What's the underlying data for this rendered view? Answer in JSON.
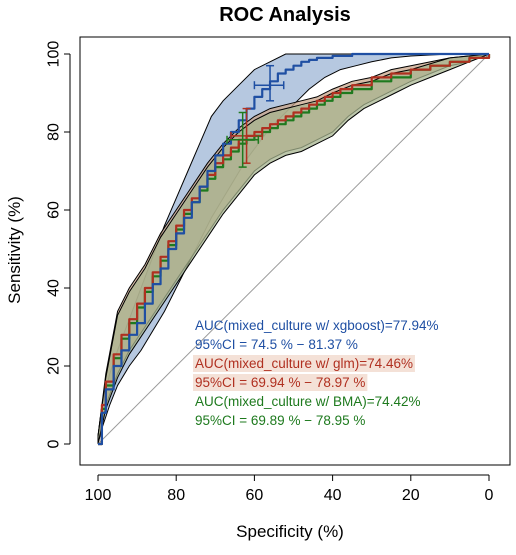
{
  "chart_data": {
    "type": "line",
    "title": "ROC Analysis",
    "xlabel": "Specificity (%)",
    "ylabel": "Sensitivity (%)",
    "xlim": [
      100,
      0
    ],
    "ylim": [
      0,
      100
    ],
    "x_reversed": true,
    "xticks": [
      100,
      80,
      60,
      40,
      20,
      0
    ],
    "yticks": [
      0,
      20,
      40,
      60,
      80,
      100
    ],
    "grid": false,
    "diagonal_reference": true,
    "series": [
      {
        "name": "xgboost",
        "color": "#1f4fa3",
        "band_color": "#9db6d6",
        "points": [
          [
            100,
            0
          ],
          [
            99,
            8
          ],
          [
            98,
            14
          ],
          [
            96,
            20
          ],
          [
            94,
            24
          ],
          [
            92,
            28
          ],
          [
            90,
            31
          ],
          [
            88,
            36
          ],
          [
            86,
            41
          ],
          [
            84,
            45
          ],
          [
            82,
            50
          ],
          [
            80,
            54
          ],
          [
            78,
            58
          ],
          [
            76,
            62
          ],
          [
            74,
            66
          ],
          [
            72,
            70
          ],
          [
            70,
            74
          ],
          [
            68,
            77
          ],
          [
            66,
            80
          ],
          [
            64,
            83
          ],
          [
            62,
            86
          ],
          [
            60,
            89
          ],
          [
            58,
            91
          ],
          [
            56,
            93
          ],
          [
            54,
            95
          ],
          [
            52,
            96
          ],
          [
            50,
            97
          ],
          [
            48,
            98
          ],
          [
            46,
            98.5
          ],
          [
            44,
            99
          ],
          [
            40,
            99.5
          ],
          [
            35,
            100
          ],
          [
            20,
            100
          ],
          [
            0,
            100
          ]
        ],
        "upper": [
          [
            100,
            2
          ],
          [
            99,
            10
          ],
          [
            97,
            18
          ],
          [
            95,
            24
          ],
          [
            92,
            32
          ],
          [
            89,
            40
          ],
          [
            86,
            48
          ],
          [
            83,
            56
          ],
          [
            80,
            63
          ],
          [
            77,
            70
          ],
          [
            74,
            77
          ],
          [
            71,
            84
          ],
          [
            68,
            88
          ],
          [
            64,
            92
          ],
          [
            60,
            96
          ],
          [
            56,
            98
          ],
          [
            52,
            100
          ],
          [
            50,
            100
          ],
          [
            0,
            100
          ]
        ],
        "lower": [
          [
            100,
            0
          ],
          [
            99,
            4
          ],
          [
            97,
            10
          ],
          [
            95,
            15
          ],
          [
            92,
            20
          ],
          [
            89,
            24
          ],
          [
            86,
            29
          ],
          [
            83,
            34
          ],
          [
            80,
            40
          ],
          [
            77,
            46
          ],
          [
            74,
            52
          ],
          [
            71,
            58
          ],
          [
            68,
            63
          ],
          [
            65,
            68
          ],
          [
            62,
            73
          ],
          [
            59,
            77
          ],
          [
            56,
            81
          ],
          [
            53,
            84
          ],
          [
            50,
            87
          ],
          [
            46,
            91
          ],
          [
            42,
            94
          ],
          [
            38,
            96
          ],
          [
            34,
            97
          ],
          [
            30,
            98
          ],
          [
            25,
            99
          ],
          [
            20,
            99.5
          ],
          [
            10,
            100
          ],
          [
            0,
            100
          ]
        ],
        "ci_point": {
          "x": 56,
          "y": 92,
          "x_err": [
            52.5,
            60
          ],
          "y_err": [
            88,
            97
          ]
        }
      },
      {
        "name": "glm",
        "color": "#b03020",
        "band_color": "#c9a58a",
        "points": [
          [
            100,
            0
          ],
          [
            99,
            10
          ],
          [
            98,
            16
          ],
          [
            96,
            23
          ],
          [
            94,
            28
          ],
          [
            92,
            32
          ],
          [
            90,
            36
          ],
          [
            88,
            40
          ],
          [
            86,
            44
          ],
          [
            84,
            48
          ],
          [
            82,
            52
          ],
          [
            80,
            56
          ],
          [
            78,
            60
          ],
          [
            76,
            63
          ],
          [
            74,
            66
          ],
          [
            72,
            69
          ],
          [
            70,
            72
          ],
          [
            68,
            74
          ],
          [
            66,
            76
          ],
          [
            64,
            78
          ],
          [
            62,
            79
          ],
          [
            60,
            80
          ],
          [
            58,
            81
          ],
          [
            56,
            82
          ],
          [
            54,
            83
          ],
          [
            52,
            84
          ],
          [
            50,
            85
          ],
          [
            48,
            86
          ],
          [
            46,
            87
          ],
          [
            44,
            88
          ],
          [
            42,
            89
          ],
          [
            40,
            90
          ],
          [
            38,
            91
          ],
          [
            35,
            92
          ],
          [
            30,
            94
          ],
          [
            25,
            95
          ],
          [
            20,
            96
          ],
          [
            15,
            97
          ],
          [
            10,
            98
          ],
          [
            5,
            99
          ],
          [
            0,
            100
          ]
        ],
        "upper": [
          [
            100,
            2
          ],
          [
            98,
            18
          ],
          [
            95,
            34
          ],
          [
            92,
            40
          ],
          [
            88,
            46
          ],
          [
            84,
            54
          ],
          [
            80,
            60
          ],
          [
            76,
            66
          ],
          [
            72,
            72
          ],
          [
            68,
            77
          ],
          [
            64,
            81
          ],
          [
            60,
            84
          ],
          [
            56,
            86
          ],
          [
            52,
            87
          ],
          [
            48,
            88
          ],
          [
            44,
            89
          ],
          [
            40,
            91
          ],
          [
            35,
            93
          ],
          [
            30,
            94
          ],
          [
            25,
            96
          ],
          [
            20,
            97
          ],
          [
            10,
            99
          ],
          [
            0,
            100
          ]
        ],
        "lower": [
          [
            100,
            0
          ],
          [
            98,
            10
          ],
          [
            95,
            18
          ],
          [
            92,
            24
          ],
          [
            88,
            30
          ],
          [
            84,
            36
          ],
          [
            80,
            42
          ],
          [
            76,
            48
          ],
          [
            72,
            54
          ],
          [
            68,
            60
          ],
          [
            64,
            65
          ],
          [
            60,
            70
          ],
          [
            56,
            73
          ],
          [
            52,
            75
          ],
          [
            48,
            76
          ],
          [
            44,
            78
          ],
          [
            40,
            80
          ],
          [
            36,
            84
          ],
          [
            32,
            87
          ],
          [
            28,
            89
          ],
          [
            24,
            91
          ],
          [
            20,
            93
          ],
          [
            15,
            95
          ],
          [
            10,
            97
          ],
          [
            5,
            98
          ],
          [
            0,
            100
          ]
        ],
        "ci_point": {
          "x": 62,
          "y": 79,
          "x_err": [
            58,
            66
          ],
          "y_err": [
            72,
            86
          ]
        }
      },
      {
        "name": "BMA",
        "color": "#1e7a1e",
        "band_color": "#a7b48f",
        "points": [
          [
            100,
            0
          ],
          [
            99,
            9
          ],
          [
            98,
            15
          ],
          [
            96,
            22
          ],
          [
            94,
            27
          ],
          [
            92,
            31
          ],
          [
            90,
            35
          ],
          [
            88,
            39
          ],
          [
            86,
            43
          ],
          [
            84,
            47
          ],
          [
            82,
            51
          ],
          [
            80,
            55
          ],
          [
            78,
            59
          ],
          [
            76,
            62
          ],
          [
            74,
            65
          ],
          [
            72,
            68
          ],
          [
            70,
            71
          ],
          [
            68,
            73
          ],
          [
            66,
            75
          ],
          [
            64,
            77
          ],
          [
            62,
            78
          ],
          [
            60,
            79
          ],
          [
            58,
            80
          ],
          [
            56,
            81
          ],
          [
            54,
            82
          ],
          [
            52,
            83
          ],
          [
            50,
            84
          ],
          [
            48,
            85
          ],
          [
            46,
            86
          ],
          [
            44,
            87
          ],
          [
            42,
            88
          ],
          [
            40,
            89
          ],
          [
            38,
            90
          ],
          [
            35,
            91
          ],
          [
            30,
            93
          ],
          [
            25,
            94
          ],
          [
            20,
            96
          ],
          [
            15,
            97
          ],
          [
            10,
            98
          ],
          [
            5,
            99
          ],
          [
            0,
            100
          ]
        ],
        "upper": [
          [
            100,
            2
          ],
          [
            98,
            17
          ],
          [
            95,
            33
          ],
          [
            92,
            39
          ],
          [
            88,
            45
          ],
          [
            84,
            53
          ],
          [
            80,
            59
          ],
          [
            76,
            65
          ],
          [
            72,
            71
          ],
          [
            68,
            76
          ],
          [
            64,
            80
          ],
          [
            60,
            83
          ],
          [
            56,
            85
          ],
          [
            52,
            86
          ],
          [
            48,
            87
          ],
          [
            44,
            88
          ],
          [
            40,
            90
          ],
          [
            35,
            92
          ],
          [
            30,
            93
          ],
          [
            25,
            95
          ],
          [
            20,
            96
          ],
          [
            10,
            99
          ],
          [
            0,
            100
          ]
        ],
        "lower": [
          [
            100,
            0
          ],
          [
            98,
            9
          ],
          [
            95,
            17
          ],
          [
            92,
            23
          ],
          [
            88,
            29
          ],
          [
            84,
            35
          ],
          [
            80,
            41
          ],
          [
            76,
            47
          ],
          [
            72,
            53
          ],
          [
            68,
            59
          ],
          [
            64,
            64
          ],
          [
            60,
            69
          ],
          [
            56,
            72
          ],
          [
            52,
            74
          ],
          [
            48,
            75
          ],
          [
            44,
            77
          ],
          [
            40,
            79
          ],
          [
            36,
            83
          ],
          [
            32,
            86
          ],
          [
            28,
            88
          ],
          [
            24,
            90
          ],
          [
            20,
            92
          ],
          [
            15,
            94
          ],
          [
            10,
            96
          ],
          [
            5,
            98
          ],
          [
            0,
            100
          ]
        ],
        "ci_point": {
          "x": 63,
          "y": 78,
          "x_err": [
            59,
            67
          ],
          "y_err": [
            71,
            85
          ]
        }
      }
    ],
    "annotations": [
      {
        "text": "AUC(mixed_culture w/ xgboost)=77.94%",
        "color": "#1f4fa3",
        "highlight": false
      },
      {
        "text": "95%CI = 74.5 % − 81.37 %",
        "color": "#1f4fa3",
        "highlight": false
      },
      {
        "text": "AUC(mixed_culture w/ glm)=74.46%",
        "color": "#b03020",
        "highlight": true
      },
      {
        "text": "95%CI = 69.94 % − 78.97 %",
        "color": "#b03020",
        "highlight": true
      },
      {
        "text": "AUC(mixed_culture w/ BMA)=74.42%",
        "color": "#1e7a1e",
        "highlight": false
      },
      {
        "text": "95%CI = 69.89 % − 78.95 %",
        "color": "#1e7a1e",
        "highlight": false
      }
    ]
  }
}
